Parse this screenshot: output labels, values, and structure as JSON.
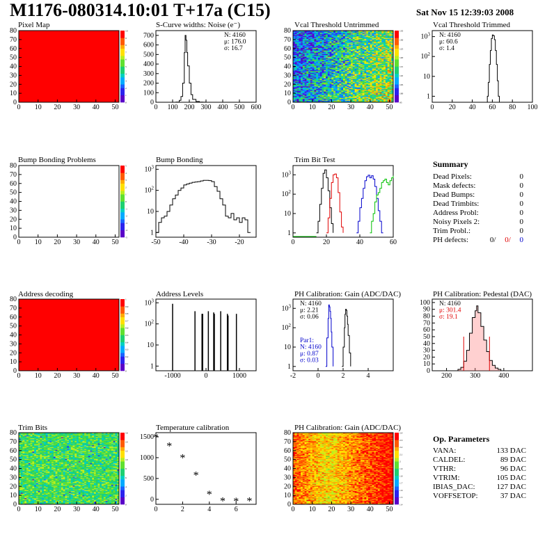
{
  "header": {
    "title": "M1176-080314.10:01 T+17a (C15)",
    "date": "Sat Nov 15 12:39:03 2008"
  },
  "chart_data": [
    {
      "id": "pixel-map",
      "type": "heatmap",
      "title": "Pixel Map",
      "xlim": [
        0,
        52
      ],
      "ylim": [
        0,
        80
      ],
      "xticks": [
        0,
        10,
        20,
        30,
        40,
        50
      ],
      "yticks": [
        0,
        10,
        20,
        30,
        40,
        50,
        60,
        70,
        80
      ],
      "fill": "uniform",
      "level": 10,
      "zlim": [
        0,
        10
      ],
      "zticks": [
        "0",
        "1",
        "2",
        "3",
        "4",
        "5",
        "6",
        "7",
        "8",
        "9",
        "10"
      ]
    },
    {
      "id": "scurve-noise",
      "type": "line",
      "title": "S-Curve widths: Noise (e⁻)",
      "xlim": [
        0,
        600
      ],
      "ylim": [
        0,
        750
      ],
      "xticks": [
        0,
        100,
        200,
        300,
        400,
        500,
        600
      ],
      "yticks": [
        0,
        100,
        200,
        300,
        400,
        500,
        600,
        700
      ],
      "x": [
        100,
        120,
        140,
        150,
        160,
        170,
        175,
        180,
        185,
        190,
        200,
        210,
        220,
        240,
        260,
        280,
        300
      ],
      "y": [
        0,
        2,
        20,
        60,
        200,
        520,
        700,
        650,
        520,
        380,
        200,
        80,
        30,
        8,
        2,
        1,
        0
      ],
      "stats": [
        "N: 4160",
        "μ: 176.0",
        "σ: 16.7"
      ]
    },
    {
      "id": "vcal-untrimmed",
      "type": "heatmap",
      "title": "Vcal Threshold Untrimmed",
      "xlim": [
        0,
        52
      ],
      "ylim": [
        0,
        80
      ],
      "xticks": [
        0,
        10,
        20,
        30,
        40,
        50
      ],
      "yticks": [
        0,
        10,
        20,
        30,
        40,
        50,
        60,
        70,
        80
      ],
      "fill": "random-gradient",
      "zlim": [
        95,
        135
      ],
      "zticks": [
        "95",
        "100",
        "105",
        "110",
        "115",
        "120",
        "125",
        "130",
        "135"
      ]
    },
    {
      "id": "vcal-trimmed",
      "type": "line",
      "title": "Vcal Threshold Trimmed",
      "log": true,
      "xlim": [
        0,
        100
      ],
      "ylim": [
        0.5,
        2000
      ],
      "xticks": [
        0,
        20,
        40,
        60,
        80,
        100
      ],
      "yticks": [
        1,
        10,
        100,
        1000
      ],
      "x": [
        54,
        55,
        56,
        57,
        58,
        59,
        60,
        61,
        62,
        63,
        64,
        65,
        66,
        67
      ],
      "y": [
        0,
        1,
        5,
        40,
        200,
        800,
        1200,
        1100,
        700,
        200,
        40,
        6,
        1,
        0
      ],
      "stats": [
        "N: 4160",
        "μ: 60.6",
        "σ:  1.4"
      ]
    },
    {
      "id": "bump-bonding-problems",
      "type": "heatmap",
      "title": "Bump Bonding Problems",
      "xlim": [
        0,
        52
      ],
      "ylim": [
        0,
        80
      ],
      "xticks": [
        0,
        10,
        20,
        30,
        40,
        50
      ],
      "yticks": [
        0,
        10,
        20,
        30,
        40,
        50,
        60,
        70,
        80
      ],
      "fill": "empty",
      "zlim": [
        -5,
        5
      ],
      "zticks": [
        "-5",
        "-4",
        "-3",
        "-2",
        "-1",
        "0",
        "1",
        "2",
        "3",
        "4",
        "5"
      ]
    },
    {
      "id": "bump-bonding",
      "type": "line",
      "title": "Bump Bonding",
      "log": true,
      "xlim": [
        -50,
        -14
      ],
      "ylim": [
        0.6,
        1500
      ],
      "xticks": [
        -50,
        -40,
        -30,
        -20
      ],
      "yticks": [
        1,
        10,
        100,
        1000
      ],
      "x": [
        -50,
        -49,
        -48,
        -47,
        -46,
        -45,
        -44,
        -43,
        -42,
        -41,
        -40,
        -39,
        -38,
        -37,
        -36,
        -35,
        -34,
        -33,
        -32,
        -31,
        -30,
        -29,
        -28,
        -27,
        -26,
        -25,
        -24,
        -23,
        -22,
        -21,
        -20,
        -19,
        -18,
        -17,
        -16
      ],
      "y": [
        1,
        3,
        5,
        6,
        10,
        20,
        40,
        60,
        100,
        130,
        180,
        200,
        220,
        240,
        250,
        260,
        280,
        300,
        300,
        290,
        260,
        150,
        90,
        40,
        20,
        6,
        5,
        8,
        4,
        5,
        3,
        5,
        4,
        1,
        1
      ],
      "stats": []
    },
    {
      "id": "trim-bit-test",
      "type": "line",
      "title": "Trim Bit Test",
      "log": true,
      "xlim": [
        0,
        60
      ],
      "ylim": [
        0.6,
        3000
      ],
      "xticks": [
        0,
        20,
        40,
        60
      ],
      "yticks": [
        1,
        10,
        100,
        1000
      ],
      "series": [
        {
          "color": "#000000",
          "x": [
            14,
            15,
            16,
            17,
            18,
            19,
            20,
            21,
            22,
            23,
            24
          ],
          "y": [
            1,
            4,
            30,
            200,
            1200,
            1800,
            700,
            150,
            20,
            3,
            1
          ]
        },
        {
          "color": "#e00000",
          "x": [
            20,
            21,
            22,
            23,
            24,
            25,
            26,
            27,
            28,
            29,
            30
          ],
          "y": [
            1,
            6,
            60,
            400,
            1000,
            1100,
            700,
            120,
            12,
            2,
            1
          ]
        },
        {
          "color": "#0000cc",
          "x": [
            38,
            39,
            40,
            41,
            42,
            43,
            44,
            45,
            46,
            47,
            48,
            49,
            50,
            51,
            52,
            53,
            54
          ],
          "y": [
            1,
            4,
            20,
            60,
            200,
            500,
            800,
            950,
            700,
            900,
            600,
            250,
            60,
            14,
            4,
            1,
            1
          ]
        },
        {
          "color": "#00c000",
          "x": [
            46,
            47,
            48,
            49,
            50,
            51,
            52,
            53,
            54,
            55,
            56,
            57,
            58,
            59,
            60
          ],
          "y": [
            1,
            4,
            10,
            40,
            90,
            120,
            200,
            400,
            500,
            600,
            400,
            300,
            500,
            700,
            900
          ]
        }
      ],
      "stats": []
    },
    {
      "id": "address-decoding",
      "type": "heatmap",
      "title": "Address decoding",
      "xlim": [
        0,
        52
      ],
      "ylim": [
        0,
        80
      ],
      "xticks": [
        0,
        10,
        20,
        30,
        40,
        50
      ],
      "yticks": [
        0,
        10,
        20,
        30,
        40,
        50,
        60,
        70,
        80
      ],
      "fill": "uniform",
      "level": 1,
      "zlim": [
        0,
        1
      ],
      "zticks": [
        "0",
        "0.1",
        "0.2",
        "0.3",
        "0.4",
        "0.5",
        "0.6",
        "0.7",
        "0.8",
        "0.9",
        "1"
      ]
    },
    {
      "id": "address-levels",
      "type": "line",
      "title": "Address Levels",
      "log": true,
      "xlim": [
        -1500,
        1500
      ],
      "ylim": [
        0.6,
        1500
      ],
      "xticks": [
        -1000,
        0,
        1000
      ],
      "yticks": [
        1,
        10,
        100,
        1000
      ],
      "x": [
        -1000,
        -1000,
        -340,
        -330,
        -320,
        -120,
        -110,
        -100,
        60,
        70,
        80,
        230,
        240,
        250,
        430,
        440,
        450,
        640,
        650,
        660,
        900,
        910,
        920
      ],
      "y": [
        0,
        900,
        0,
        400,
        0,
        300,
        0,
        300,
        0,
        400,
        0,
        350,
        0,
        300,
        0,
        400,
        0,
        300,
        0,
        250,
        0,
        300,
        0
      ],
      "stats": []
    },
    {
      "id": "ph-gain",
      "type": "line",
      "title": "PH Calibration: Gain (ADC/DAC)",
      "log": true,
      "xlim": [
        -2,
        6
      ],
      "ylim": [
        0.6,
        3000
      ],
      "xticks": [
        -2,
        0,
        2,
        4
      ],
      "yticks": [
        1,
        10,
        100,
        1000
      ],
      "series": [
        {
          "color": "#0000cc",
          "x": [
            0.6,
            0.7,
            0.8,
            0.85,
            0.9,
            0.95,
            1.0,
            1.05,
            1.1,
            1.2
          ],
          "y": [
            1,
            30,
            300,
            1500,
            1200,
            700,
            300,
            60,
            10,
            1
          ]
        },
        {
          "color": "#000000",
          "x": [
            1.9,
            2.0,
            2.1,
            2.15,
            2.2,
            2.25,
            2.3,
            2.35,
            2.4,
            2.5,
            2.6
          ],
          "y": [
            1,
            10,
            100,
            500,
            900,
            800,
            400,
            150,
            40,
            5,
            1
          ]
        }
      ],
      "stats": [
        "N: 4160",
        "μ: 2.21",
        "σ: 0.06"
      ],
      "stats2": [
        "Par1:",
        "N: 4160",
        "μ: 0.87",
        "σ: 0.03"
      ]
    },
    {
      "id": "ph-pedestal",
      "type": "line",
      "title": "PH Calibration: Pedestal (DAC)",
      "xlim": [
        150,
        500
      ],
      "ylim": [
        0,
        105
      ],
      "xticks": [
        200,
        300,
        400
      ],
      "yticks": [
        0,
        10,
        20,
        30,
        40,
        50,
        60,
        70,
        80,
        90,
        100
      ],
      "x": [
        220,
        240,
        250,
        260,
        270,
        280,
        290,
        300,
        305,
        310,
        320,
        330,
        340,
        350,
        360,
        370,
        380,
        390
      ],
      "y": [
        0,
        2,
        5,
        14,
        30,
        55,
        78,
        88,
        95,
        85,
        65,
        45,
        28,
        15,
        8,
        4,
        2,
        0
      ],
      "stats": [
        "N: 4160"
      ],
      "stats_red": [
        "μ: 301.4",
        "σ: 19.1"
      ],
      "markers": [
        260,
        350
      ]
    },
    {
      "id": "trim-bits",
      "type": "heatmap",
      "title": "Trim Bits",
      "xlim": [
        0,
        52
      ],
      "ylim": [
        0,
        80
      ],
      "xticks": [
        0,
        10,
        20,
        30,
        40,
        50
      ],
      "yticks": [
        0,
        10,
        20,
        30,
        40,
        50,
        60,
        70,
        80
      ],
      "fill": "random-mid",
      "zlim": [
        0,
        16
      ],
      "zticks": [
        "0",
        "2",
        "4",
        "6",
        "8",
        "10",
        "12",
        "14",
        "16"
      ]
    },
    {
      "id": "temperature-calibration",
      "type": "scatter",
      "title": "Temperature calibration",
      "xlim": [
        0,
        7.5
      ],
      "ylim": [
        -120,
        1600
      ],
      "xticks": [
        0,
        2,
        4,
        6
      ],
      "yticks": [
        0,
        500,
        1000,
        1500
      ],
      "x": [
        0,
        1,
        2,
        3,
        4,
        5,
        6,
        7
      ],
      "y": [
        1500,
        1290,
        1010,
        590,
        130,
        -30,
        -35,
        -25
      ],
      "stats": []
    },
    {
      "id": "ph-gain-map",
      "type": "heatmap",
      "title": "PH Calibration: Gain (ADC/DAC)",
      "xlim": [
        0,
        52
      ],
      "ylim": [
        0,
        80
      ],
      "xticks": [
        0,
        10,
        20,
        30,
        40,
        50
      ],
      "yticks": [
        0,
        10,
        20,
        30,
        40,
        50,
        60,
        70,
        80
      ],
      "fill": "random-high",
      "zlim": [
        1.4,
        2.4
      ],
      "zticks": [
        "1.4",
        "1.5",
        "1.6",
        "1.7",
        "1.8",
        "1.9",
        "2",
        "2.1",
        "2.2",
        "2.3",
        "2.4"
      ]
    }
  ],
  "summary": {
    "title": "Summary",
    "rows": [
      {
        "label": "Dead Pixels:",
        "value": "0"
      },
      {
        "label": "Mask defects:",
        "value": "0"
      },
      {
        "label": "Dead Bumps:",
        "value": "0"
      },
      {
        "label": "Dead Trimbits:",
        "value": "0"
      },
      {
        "label": "Address Probl:",
        "value": "0"
      },
      {
        "label": "Noisy Pixels 2:",
        "value": "0"
      },
      {
        "label": "Trim Probl.:",
        "value": "0"
      }
    ],
    "ph_defects": {
      "label": "PH defects:",
      "a": "0/",
      "b": "0/",
      "c": "0"
    }
  },
  "params": {
    "title": "Op. Parameters",
    "rows": [
      {
        "label": "VANA:",
        "value": "133 DAC"
      },
      {
        "label": "CALDEL:",
        "value": "89 DAC"
      },
      {
        "label": "VTHR:",
        "value": "96 DAC"
      },
      {
        "label": "VTRIM:",
        "value": "105 DAC"
      },
      {
        "label": "IBIAS_DAC:",
        "value": "127 DAC"
      },
      {
        "label": "VOFFSETOP:",
        "value": "37 DAC"
      }
    ]
  }
}
